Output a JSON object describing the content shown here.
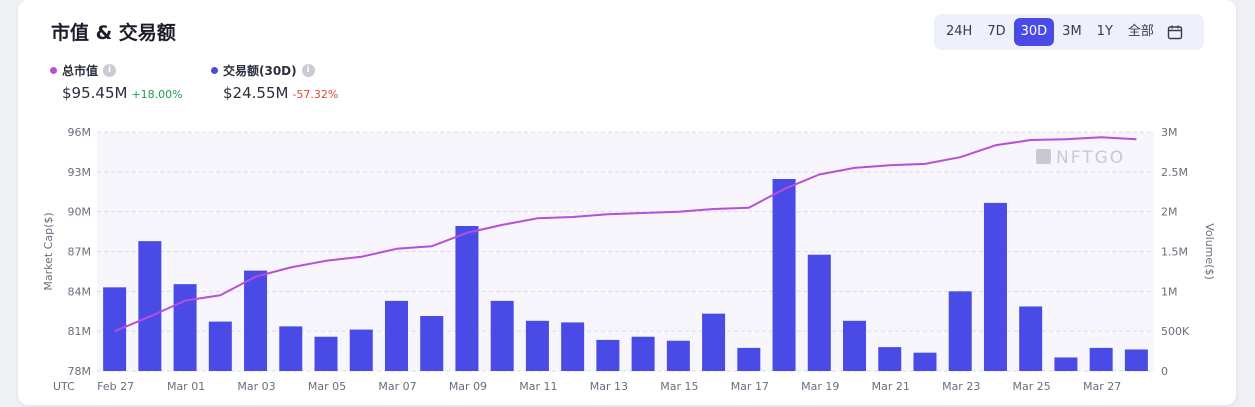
{
  "header": {
    "title": "市值 & 交易额",
    "ranges": [
      "24H",
      "7D",
      "30D",
      "3M",
      "1Y",
      "全部"
    ],
    "active_range": "30D"
  },
  "metrics": {
    "market_cap": {
      "label": "总市值",
      "value": "$95.45M",
      "change": "+18.00%",
      "color": "#b84fd6",
      "change_color": "#1a9e4b"
    },
    "volume": {
      "label": "交易额(30D)",
      "value": "$24.55M",
      "change": "-57.32%",
      "color": "#4a4ae6",
      "change_color": "#e0473d"
    }
  },
  "watermark": "NFTGO",
  "chart_data": {
    "type": "bar",
    "x_label_prefix": "UTC",
    "categories": [
      "Feb 27",
      "Feb 28",
      "Mar 01",
      "Mar 02",
      "Mar 03",
      "Mar 04",
      "Mar 05",
      "Mar 06",
      "Mar 07",
      "Mar 08",
      "Mar 09",
      "Mar 10",
      "Mar 11",
      "Mar 12",
      "Mar 13",
      "Mar 14",
      "Mar 15",
      "Mar 16",
      "Mar 17",
      "Mar 18",
      "Mar 19",
      "Mar 20",
      "Mar 21",
      "Mar 22",
      "Mar 23",
      "Mar 24",
      "Mar 25",
      "Mar 26",
      "Mar 27",
      "Mar 28"
    ],
    "tick_labels": [
      "Feb 27",
      "Mar 01",
      "Mar 03",
      "Mar 05",
      "Mar 07",
      "Mar 09",
      "Mar 11",
      "Mar 13",
      "Mar 15",
      "Mar 17",
      "Mar 19",
      "Mar 21",
      "Mar 23",
      "Mar 25",
      "Mar 27"
    ],
    "series": [
      {
        "name": "交易额(30D)",
        "type": "bar",
        "axis": "right",
        "color": "#4a4ae6",
        "values": [
          1.05,
          1.63,
          1.09,
          0.62,
          1.26,
          0.56,
          0.43,
          0.52,
          0.88,
          0.69,
          1.82,
          0.88,
          0.63,
          0.61,
          0.39,
          0.43,
          0.38,
          0.72,
          0.29,
          2.41,
          1.46,
          0.63,
          0.3,
          0.23,
          1.0,
          2.11,
          0.81,
          0.17,
          0.29,
          0.27
        ]
      },
      {
        "name": "总市值",
        "type": "line",
        "axis": "left",
        "color": "#b84fd6",
        "values": [
          81.0,
          82.1,
          83.3,
          83.7,
          85.1,
          85.8,
          86.3,
          86.6,
          87.2,
          87.4,
          88.4,
          89.0,
          89.5,
          89.6,
          89.8,
          89.9,
          90.0,
          90.2,
          90.3,
          91.7,
          92.8,
          93.3,
          93.5,
          93.6,
          94.1,
          95.0,
          95.4,
          95.45,
          95.6,
          95.45
        ]
      }
    ],
    "y_left": {
      "label": "Market Cap($)",
      "ylim": [
        78,
        96
      ],
      "ticks": [
        "78M",
        "81M",
        "84M",
        "87M",
        "90M",
        "93M",
        "96M"
      ]
    },
    "y_right": {
      "label": "Volume($)",
      "ylim": [
        0,
        3
      ],
      "ticks": [
        "0",
        "500K",
        "1M",
        "1.5M",
        "2M",
        "2.5M",
        "3M"
      ]
    },
    "grid": true
  }
}
